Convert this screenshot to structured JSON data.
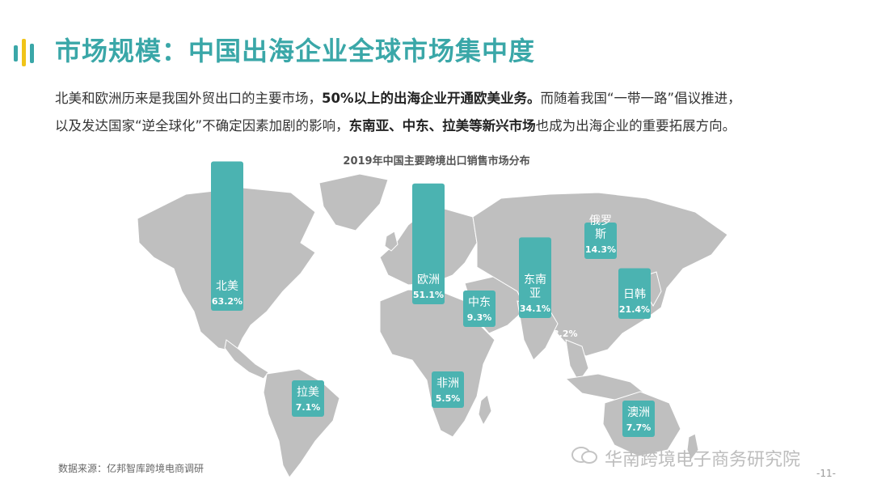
{
  "title": "市场规模：中国出海企业全球市场集中度",
  "desc": {
    "line1_a": "北美和欧洲历来是我国外贸出口的主要市场，",
    "line1_b": "50%以上的出海企业开通欧美业务。",
    "line1_c": "而随着我国“一带一路”倡议推进，",
    "line2_a": "以及发达国家“逆全球化”不确定因素加剧的影响，",
    "line2_b": "东南亚、中东、拉美等新兴市场",
    "line2_c": "也成为出海企业的重要拓展方向。"
  },
  "chart_data": {
    "type": "bar",
    "title": "2019年中国主要跨境出口销售市场分布",
    "unit": "%",
    "categories": [
      "北美",
      "欧洲",
      "中东",
      "东南亚",
      "俄罗斯",
      "日韩",
      "拉美",
      "非洲",
      "澳洲"
    ],
    "values": [
      63.2,
      51.1,
      9.3,
      34.1,
      14.3,
      21.4,
      7.1,
      5.5,
      7.7
    ],
    "value_labels": [
      "63.2%",
      "51.1%",
      "9.3%",
      "34.1%",
      "14.3%",
      "21.4%",
      "7.1%",
      "5.5%",
      "7.7%"
    ],
    "ghost_label": "3.2%",
    "bar_color": "#4bb3b1",
    "map_color": "#bfbfbf"
  },
  "source": "数据来源：亿邦智库跨境电商调研",
  "watermark": "华南跨境电子商务研究院",
  "page_number": "-11-"
}
